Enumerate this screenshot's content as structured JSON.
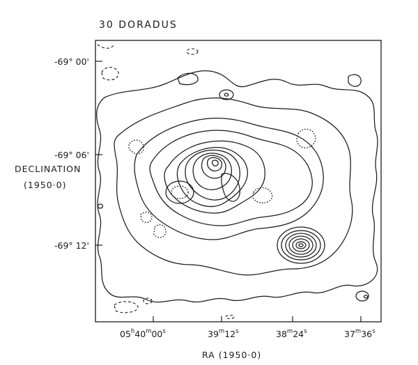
{
  "title": "30 DORADUS",
  "y_axis": {
    "label_line1": "DECLINATION",
    "label_line2": "(1950·0)",
    "ticks": [
      {
        "deg": "-69°",
        "min": "00'"
      },
      {
        "deg": "-69°",
        "min": "06'"
      },
      {
        "deg": "-69°",
        "min": "12'"
      }
    ]
  },
  "x_axis": {
    "label": "RA (1950·0)",
    "ticks": [
      {
        "h": "05",
        "m": "40",
        "s": "00"
      },
      {
        "h": "",
        "m": "39",
        "s": "12"
      },
      {
        "h": "",
        "m": "38",
        "s": "24"
      },
      {
        "h": "",
        "m": "37",
        "s": "36"
      }
    ],
    "unit_h": "h",
    "unit_m": "m",
    "unit_s": "s"
  },
  "style": {
    "ink": "#1a1a1a",
    "background": "#ffffff"
  }
}
